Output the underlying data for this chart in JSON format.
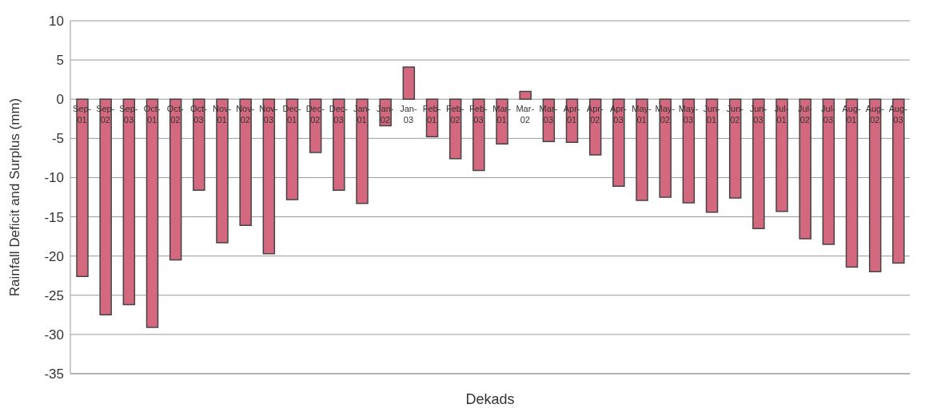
{
  "chart_data": {
    "type": "bar",
    "xlabel": "Dekads",
    "ylabel": "Rainfall Deficit and Surplus (mm)",
    "categories": [
      "Sep-01",
      "Sep-02",
      "Sep-03",
      "Oct-01",
      "Oct-02",
      "Oct-03",
      "Nov-01",
      "Nov-02",
      "Nov-03",
      "Dec-01",
      "Dec-02",
      "Dec-03",
      "Jan-01",
      "Jan-02",
      "Jan-03",
      "Feb-01",
      "Feb-02",
      "Feb-03",
      "Mar-01",
      "Mar-02",
      "Mar-03",
      "Apr-01",
      "Apr-02",
      "Apr-03",
      "May-01",
      "May-02",
      "May-03",
      "Jun-01",
      "Jun-02",
      "Jun-03",
      "Jul-01",
      "Jul-02",
      "Jul-03",
      "Aug-01",
      "Aug-02",
      "Aug-03"
    ],
    "values": [
      -22.6,
      -27.5,
      -26.2,
      -29.1,
      -20.5,
      -11.6,
      -18.3,
      -16.1,
      -19.7,
      -12.8,
      -6.8,
      -11.6,
      -13.3,
      -3.4,
      4.1,
      -4.8,
      -7.6,
      -9.1,
      -5.7,
      1,
      -5.4,
      -5.5,
      -7.1,
      -11.1,
      -12.9,
      -12.5,
      -13.2,
      -14.4,
      -12.6,
      -16.5,
      -14.3,
      -17.8,
      -18.5,
      -21.4,
      -22.0,
      -20.9
    ],
    "color": "#d4687f",
    "ylim": [
      -35,
      10
    ],
    "yticks": [
      -35,
      -30,
      -25,
      -20,
      -15,
      -10,
      -5,
      0,
      5,
      10
    ],
    "grid": "y",
    "legend": false
  }
}
